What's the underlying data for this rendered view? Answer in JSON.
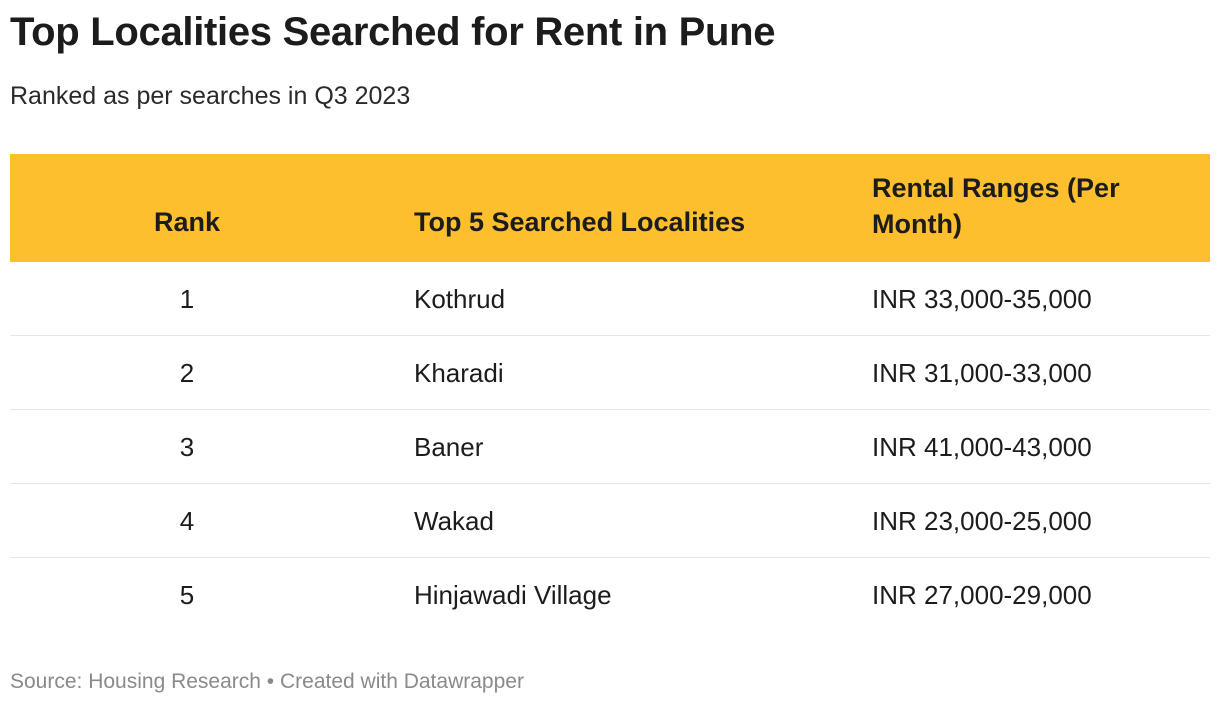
{
  "chart_data": {
    "type": "table",
    "title": "Top Localities Searched for Rent in Pune",
    "subtitle": "Ranked as per searches in Q3 2023",
    "columns": [
      "Rank",
      "Top 5 Searched Localities",
      "Rental Ranges (Per Month)"
    ],
    "rows": [
      [
        "1",
        "Kothrud",
        "INR 33,000-35,000"
      ],
      [
        "2",
        "Kharadi",
        "INR 31,000-33,000"
      ],
      [
        "3",
        "Baner",
        "INR 41,000-43,000"
      ],
      [
        "4",
        "Wakad",
        "INR 23,000-25,000"
      ],
      [
        "5",
        "Hinjawadi Village",
        "INR 27,000-29,000"
      ]
    ],
    "header_color": "#fdbf2d"
  },
  "footer": {
    "source": "Source: Housing Research • Created with Datawrapper"
  }
}
